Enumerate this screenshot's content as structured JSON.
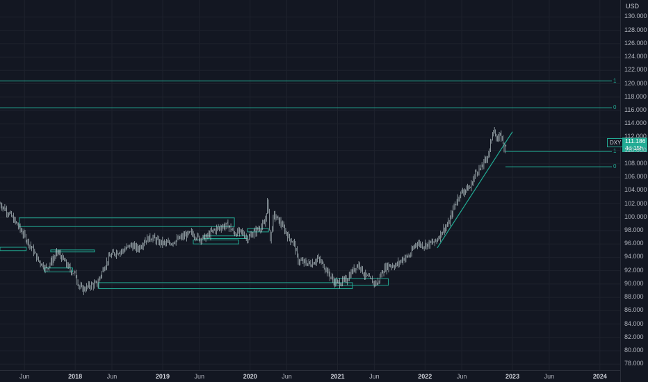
{
  "chart_data": {
    "type": "line",
    "symbol": "DXY",
    "currency": "USD",
    "last_price": "111.186",
    "countdown": "4d 15h",
    "ylim": [
      77.5,
      131.5
    ],
    "y_ticks": [
      "78.000",
      "80.000",
      "82.000",
      "84.000",
      "86.000",
      "88.000",
      "90.000",
      "92.000",
      "94.000",
      "96.000",
      "98.000",
      "100.000",
      "102.000",
      "104.000",
      "106.000",
      "108.000",
      "110.000",
      "112.000",
      "114.000",
      "116.000",
      "118.000",
      "120.000",
      "122.000",
      "124.000",
      "126.000",
      "128.000",
      "130.000"
    ],
    "x_ticks": [
      {
        "label": "Jun",
        "t": 2017.42,
        "year": false
      },
      {
        "label": "2018",
        "t": 2018.0,
        "year": true
      },
      {
        "label": "Jun",
        "t": 2018.42,
        "year": false
      },
      {
        "label": "2019",
        "t": 2019.0,
        "year": true
      },
      {
        "label": "Jun",
        "t": 2019.42,
        "year": false
      },
      {
        "label": "2020",
        "t": 2020.0,
        "year": true
      },
      {
        "label": "Jun",
        "t": 2020.42,
        "year": false
      },
      {
        "label": "2021",
        "t": 2021.0,
        "year": true
      },
      {
        "label": "Jun",
        "t": 2021.42,
        "year": false
      },
      {
        "label": "2022",
        "t": 2022.0,
        "year": true
      },
      {
        "label": "Jun",
        "t": 2022.42,
        "year": false
      },
      {
        "label": "2023",
        "t": 2023.0,
        "year": true
      },
      {
        "label": "Jun",
        "t": 2023.42,
        "year": false
      },
      {
        "label": "2024",
        "t": 2024.0,
        "year": true
      }
    ],
    "xlim": [
      2017.14,
      2024.2
    ],
    "series": [
      {
        "values": [
          [
            2017.14,
            102.0
          ],
          [
            2017.25,
            100.5
          ],
          [
            2017.33,
            99.0
          ],
          [
            2017.42,
            97.2
          ],
          [
            2017.5,
            95.5
          ],
          [
            2017.58,
            93.5
          ],
          [
            2017.67,
            92.3
          ],
          [
            2017.72,
            93.2
          ],
          [
            2017.8,
            94.8
          ],
          [
            2017.87,
            93.5
          ],
          [
            2017.95,
            92.0
          ],
          [
            2018.0,
            91.5
          ],
          [
            2018.05,
            89.5
          ],
          [
            2018.1,
            89.2
          ],
          [
            2018.17,
            89.8
          ],
          [
            2018.25,
            90.0
          ],
          [
            2018.33,
            92.5
          ],
          [
            2018.4,
            94.2
          ],
          [
            2018.47,
            94.8
          ],
          [
            2018.55,
            95.0
          ],
          [
            2018.63,
            95.8
          ],
          [
            2018.72,
            95.3
          ],
          [
            2018.8,
            96.6
          ],
          [
            2018.88,
            97.0
          ],
          [
            2018.95,
            96.3
          ],
          [
            2019.05,
            96.0
          ],
          [
            2019.15,
            96.5
          ],
          [
            2019.25,
            97.2
          ],
          [
            2019.33,
            97.6
          ],
          [
            2019.42,
            96.8
          ],
          [
            2019.5,
            97.0
          ],
          [
            2019.58,
            98.0
          ],
          [
            2019.67,
            98.6
          ],
          [
            2019.75,
            98.8
          ],
          [
            2019.82,
            97.6
          ],
          [
            2019.9,
            97.8
          ],
          [
            2019.97,
            96.8
          ],
          [
            2020.05,
            97.8
          ],
          [
            2020.12,
            98.5
          ],
          [
            2020.17,
            99.0
          ],
          [
            2020.2,
            102.5
          ],
          [
            2020.23,
            96.5
          ],
          [
            2020.27,
            100.3
          ],
          [
            2020.33,
            99.5
          ],
          [
            2020.4,
            98.0
          ],
          [
            2020.45,
            96.8
          ],
          [
            2020.5,
            96.2
          ],
          [
            2020.55,
            93.5
          ],
          [
            2020.62,
            93.2
          ],
          [
            2020.7,
            93.0
          ],
          [
            2020.77,
            93.8
          ],
          [
            2020.83,
            93.0
          ],
          [
            2020.9,
            91.5
          ],
          [
            2020.97,
            90.2
          ],
          [
            2021.03,
            90.2
          ],
          [
            2021.1,
            90.6
          ],
          [
            2021.2,
            92.5
          ],
          [
            2021.25,
            93.0
          ],
          [
            2021.3,
            91.5
          ],
          [
            2021.38,
            90.5
          ],
          [
            2021.45,
            90.0
          ],
          [
            2021.52,
            92.0
          ],
          [
            2021.58,
            92.8
          ],
          [
            2021.67,
            92.8
          ],
          [
            2021.75,
            93.8
          ],
          [
            2021.83,
            94.3
          ],
          [
            2021.9,
            96.2
          ],
          [
            2021.97,
            95.8
          ],
          [
            2022.05,
            96.0
          ],
          [
            2022.12,
            96.3
          ],
          [
            2022.2,
            98.0
          ],
          [
            2022.27,
            99.0
          ],
          [
            2022.33,
            101.5
          ],
          [
            2022.4,
            103.5
          ],
          [
            2022.47,
            104.2
          ],
          [
            2022.52,
            104.5
          ],
          [
            2022.58,
            106.8
          ],
          [
            2022.64,
            107.3
          ],
          [
            2022.7,
            108.8
          ],
          [
            2022.74,
            110.0
          ],
          [
            2022.78,
            113.5
          ],
          [
            2022.82,
            111.2
          ],
          [
            2022.86,
            112.8
          ],
          [
            2022.9,
            110.5
          ],
          [
            2022.93,
            111.2
          ]
        ]
      }
    ],
    "horizontal_levels": [
      {
        "value": 120.4,
        "label": "1",
        "x_from": 2017.14
      },
      {
        "value": 116.4,
        "label": "0",
        "x_from": 2017.14
      },
      {
        "value": 109.85,
        "label": "1",
        "x_from": 2022.92
      },
      {
        "value": 107.55,
        "label": "0",
        "x_from": 2022.92
      }
    ],
    "trendline": {
      "from": [
        2022.14,
        95.4
      ],
      "to": [
        2023.0,
        112.8
      ]
    },
    "zones": [
      {
        "x0": 2017.36,
        "x1": 2019.82,
        "y0": 98.6,
        "y1": 99.9
      },
      {
        "x0": 2017.14,
        "x1": 2017.44,
        "y0": 95.0,
        "y1": 95.5
      },
      {
        "x0": 2017.72,
        "x1": 2018.22,
        "y0": 94.8,
        "y1": 95.1
      },
      {
        "x0": 2017.65,
        "x1": 2017.97,
        "y0": 91.8,
        "y1": 92.4
      },
      {
        "x0": 2018.27,
        "x1": 2021.17,
        "y0": 89.3,
        "y1": 90.2
      },
      {
        "x0": 2019.35,
        "x1": 2019.87,
        "y0": 96.0,
        "y1": 96.6
      },
      {
        "x0": 2019.47,
        "x1": 2019.97,
        "y0": 96.8,
        "y1": 97.2
      },
      {
        "x0": 2019.97,
        "x1": 2020.21,
        "y0": 97.8,
        "y1": 98.3
      },
      {
        "x0": 2020.97,
        "x1": 2021.58,
        "y0": 89.8,
        "y1": 90.8
      }
    ]
  },
  "colors": {
    "background": "#131722",
    "grid": "#1e222d",
    "drawing": "#22ab94",
    "candle": "#b7c5c9",
    "axis_text": "#b2b5be"
  }
}
